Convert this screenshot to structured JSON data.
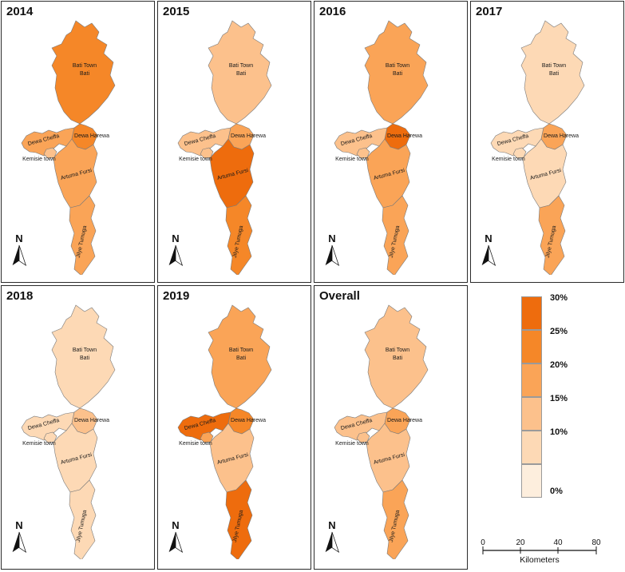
{
  "figure": {
    "background": "#ffffff",
    "border_color": "#2b2b2b"
  },
  "map": {
    "north_label": "N",
    "labels": {
      "bati_town": "Bati Town",
      "bati": "Bati",
      "dewa_cheffa": "Dewa Cheffa",
      "dewa_harewa": "Dewa Harewa",
      "kemisie_town": "Kemisie town",
      "artuma_fursi": "Artuma Fursi",
      "jilye_tumuga": "Jilye Tumuga"
    }
  },
  "color_by_class": {
    "0%": "#fdeedd",
    "10%": "#fdd9b5",
    "15%": "#fcc18c",
    "20%": "#faa457",
    "25%": "#f58728",
    "30%": "#ee6c0d"
  },
  "panels": [
    {
      "title": "2014",
      "values": {
        "bati": "25%",
        "dewa_cheffa": "20%",
        "dewa_harewa": "25%",
        "kemisie_town": "15%",
        "artuma_fursi": "20%",
        "jilye_tumuga": "20%"
      }
    },
    {
      "title": "2015",
      "values": {
        "bati": "15%",
        "dewa_cheffa": "15%",
        "dewa_harewa": "20%",
        "kemisie_town": "15%",
        "artuma_fursi": "30%",
        "jilye_tumuga": "25%"
      }
    },
    {
      "title": "2016",
      "values": {
        "bati": "20%",
        "dewa_cheffa": "15%",
        "dewa_harewa": "30%",
        "kemisie_town": "15%",
        "artuma_fursi": "20%",
        "jilye_tumuga": "20%"
      }
    },
    {
      "title": "2017",
      "values": {
        "bati": "10%",
        "dewa_cheffa": "10%",
        "dewa_harewa": "20%",
        "kemisie_town": "10%",
        "artuma_fursi": "10%",
        "jilye_tumuga": "20%"
      }
    },
    {
      "title": "2018",
      "values": {
        "bati": "10%",
        "dewa_cheffa": "10%",
        "dewa_harewa": "15%",
        "kemisie_town": "10%",
        "artuma_fursi": "10%",
        "jilye_tumuga": "10%"
      }
    },
    {
      "title": "2019",
      "values": {
        "bati": "20%",
        "dewa_cheffa": "30%",
        "dewa_harewa": "25%",
        "kemisie_town": "20%",
        "artuma_fursi": "15%",
        "jilye_tumuga": "30%"
      }
    },
    {
      "title": "Overall",
      "values": {
        "bati": "15%",
        "dewa_cheffa": "15%",
        "dewa_harewa": "20%",
        "kemisie_town": "15%",
        "artuma_fursi": "15%",
        "jilye_tumuga": "20%"
      }
    }
  ],
  "legend": {
    "stops": [
      {
        "label": "30%",
        "color": "#ee6c0d"
      },
      {
        "label": "25%",
        "color": "#f58728"
      },
      {
        "label": "20%",
        "color": "#faa457"
      },
      {
        "label": "15%",
        "color": "#fcc18c"
      },
      {
        "label": "10%",
        "color": "#fdd9b5"
      },
      {
        "label": "0%",
        "color": "#fdeedd"
      }
    ],
    "scalebar": {
      "ticks": [
        "0",
        "20",
        "40",
        "80"
      ],
      "unit": "Kilometers"
    }
  }
}
